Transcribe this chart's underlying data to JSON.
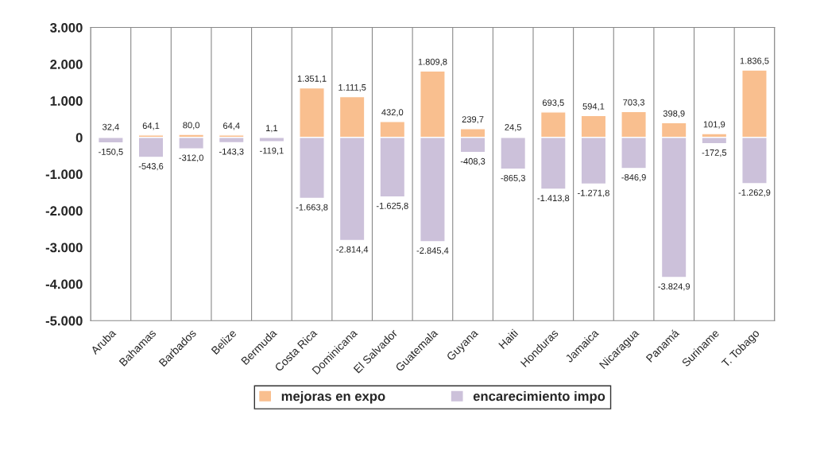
{
  "chart_data": {
    "type": "bar",
    "stacked": true,
    "categories": [
      "Aruba",
      "Bahamas",
      "Barbados",
      "Belize",
      "Bermuda",
      "Costa Rica",
      "Dominicana",
      "El Salvador",
      "Guatemala",
      "Guyana",
      "Haiti",
      "Honduras",
      "Jamaica",
      "Nicaragua",
      "Panamá",
      "Suriname",
      "T. Tobago"
    ],
    "series": [
      {
        "name": "mejoras en expo",
        "color": "#f9bf8f",
        "values": [
          32.4,
          64.1,
          80.0,
          64.4,
          1.1,
          1351.1,
          1111.5,
          432.0,
          1809.8,
          239.7,
          24.5,
          693.5,
          594.1,
          703.3,
          398.9,
          101.9,
          1836.5
        ],
        "value_labels": [
          "32,4",
          "64,1",
          "80,0",
          "64,4",
          "1,1",
          "1.351,1",
          "1.111,5",
          "432,0",
          "1.809,8",
          "239,7",
          "24,5",
          "693,5",
          "594,1",
          "703,3",
          "398,9",
          "101,9",
          "1.836,5"
        ]
      },
      {
        "name": "encarecimiento impo",
        "color": "#ccc1da",
        "values": [
          -150.5,
          -543.6,
          -312.0,
          -143.3,
          -119.1,
          -1663.8,
          -2814.4,
          -1625.8,
          -2845.4,
          -408.3,
          -865.3,
          -1413.8,
          -1271.8,
          -846.9,
          -3824.9,
          -172.5,
          -1262.9
        ],
        "value_labels": [
          "-150,5",
          "-543,6",
          "-312,0",
          "-143,3",
          "-119,1",
          "-1.663,8",
          "-2.814,4",
          "-1.625,8",
          "-2.845,4",
          "-408,3",
          "-865,3",
          "-1.413,8",
          "-1.271,8",
          "-846,9",
          "-3.824,9",
          "-172,5",
          "-1.262,9"
        ]
      }
    ],
    "ylim": [
      -5000,
      3000
    ],
    "yticks": [
      {
        "value": 3000,
        "label": "3.000"
      },
      {
        "value": 2000,
        "label": "2.000"
      },
      {
        "value": 1000,
        "label": "1.000"
      },
      0,
      {
        "value": -1000,
        "label": "-1.000"
      },
      {
        "value": -2000,
        "label": "-2.000"
      },
      {
        "value": -3000,
        "label": "-3.000"
      },
      {
        "value": -4000,
        "label": "-4.000"
      },
      {
        "value": -5000,
        "label": "-5.000"
      }
    ],
    "grid": "x",
    "legend": "bottom"
  }
}
